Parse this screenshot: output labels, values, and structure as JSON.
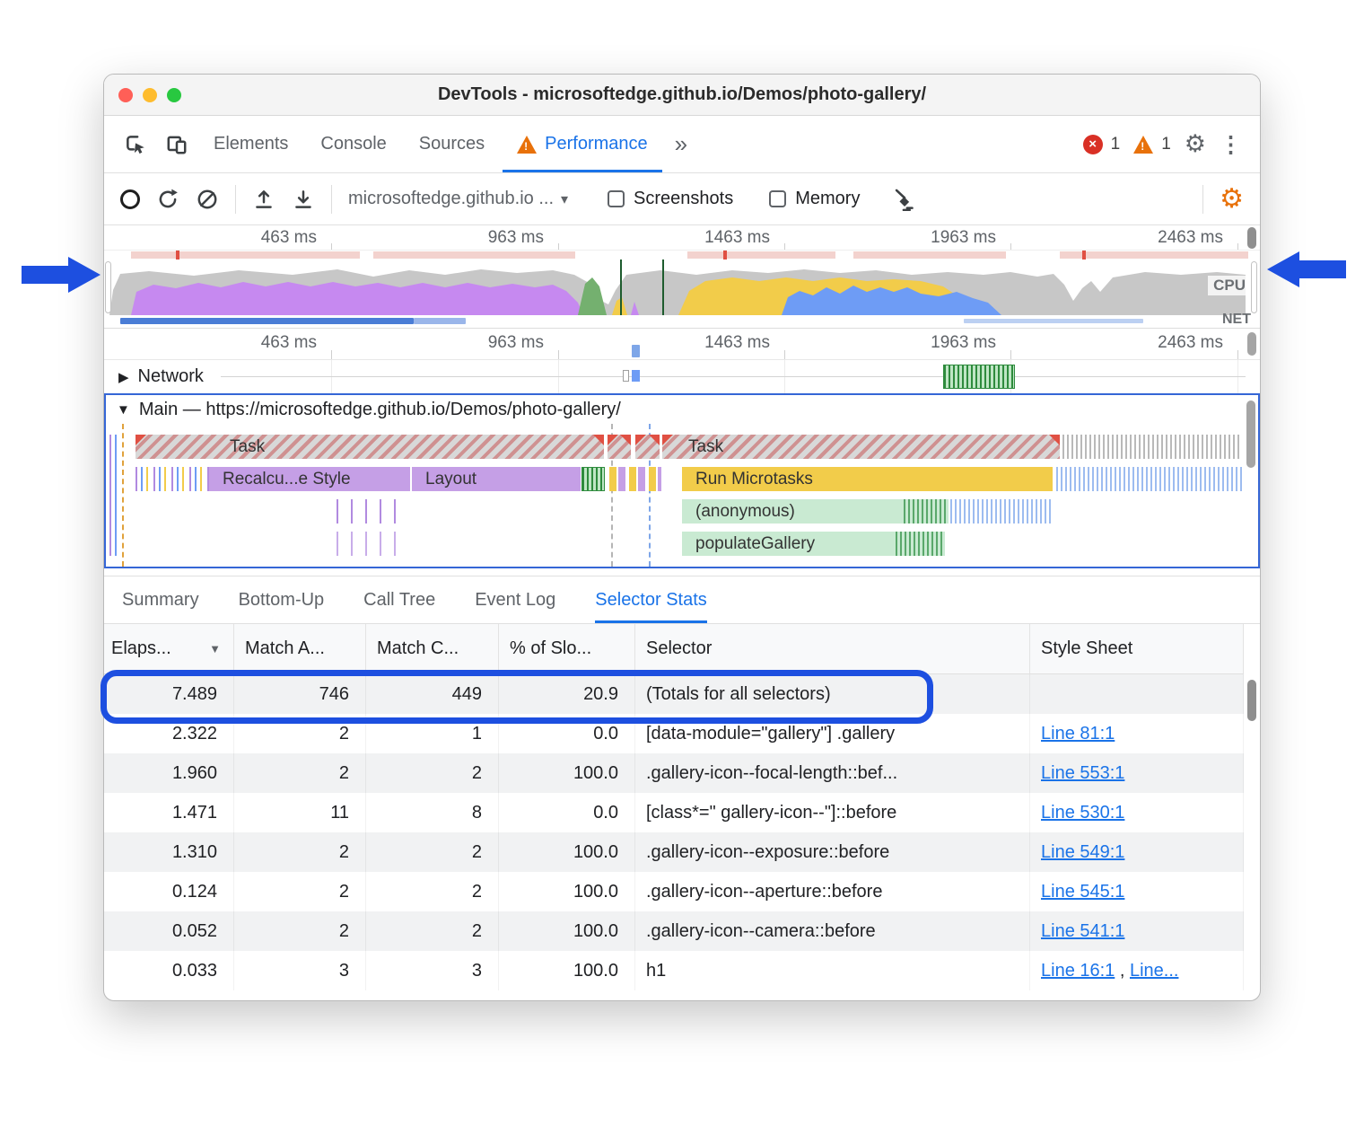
{
  "window": {
    "title": "DevTools - microsoftedge.github.io/Demos/photo-gallery/"
  },
  "icons": {
    "close": "×",
    "warning_mark": "!",
    "gear": "⚙",
    "kebab": "⋮",
    "more": "»",
    "caret": "▾",
    "tri_right": "▶",
    "tri_down": "▼",
    "sort": "▼"
  },
  "main_tabs": {
    "items": [
      "Elements",
      "Console",
      "Sources",
      "Performance"
    ],
    "error_count": "1",
    "warning_count": "1"
  },
  "toolbar": {
    "history_selector": "microsoftedge.github.io ...",
    "screenshots_label": "Screenshots",
    "memory_label": "Memory"
  },
  "overview": {
    "time_labels": [
      "463 ms",
      "963 ms",
      "1463 ms",
      "1963 ms",
      "2463 ms"
    ],
    "cpu_label": "CPU",
    "net_label": "NET"
  },
  "timeline": {
    "time_labels": [
      "463 ms",
      "963 ms",
      "1463 ms",
      "1963 ms",
      "2463 ms"
    ],
    "network_label": "Network",
    "main_label": "Main — https://microsoftedge.github.io/Demos/photo-gallery/",
    "flame": {
      "task_left": "Task",
      "task_right": "Task",
      "recalc_style": "Recalcu...e Style",
      "layout": "Layout",
      "run_microtasks": "Run Microtasks",
      "anonymous": "(anonymous)",
      "populate_gallery": "populateGallery"
    }
  },
  "bottom_tabs": {
    "items": [
      "Summary",
      "Bottom-Up",
      "Call Tree",
      "Event Log",
      "Selector Stats"
    ]
  },
  "stats_table": {
    "columns": [
      "Elaps...",
      "Match A...",
      "Match C...",
      "% of Slo...",
      "Selector",
      "Style Sheet"
    ],
    "rows": [
      {
        "elapsed": "7.489",
        "match_attempts": "746",
        "match_count": "449",
        "slow_pct": "20.9",
        "selector": "(Totals for all selectors)",
        "link1": "",
        "sep": "",
        "link2": ""
      },
      {
        "elapsed": "2.322",
        "match_attempts": "2",
        "match_count": "1",
        "slow_pct": "0.0",
        "selector": "[data-module=\"gallery\"] .gallery",
        "link1": "Line 81:1",
        "sep": "",
        "link2": ""
      },
      {
        "elapsed": "1.960",
        "match_attempts": "2",
        "match_count": "2",
        "slow_pct": "100.0",
        "selector": ".gallery-icon--focal-length::bef...",
        "link1": "Line 553:1",
        "sep": "",
        "link2": ""
      },
      {
        "elapsed": "1.471",
        "match_attempts": "11",
        "match_count": "8",
        "slow_pct": "0.0",
        "selector": "[class*=\" gallery-icon--\"]::before",
        "link1": "Line 530:1",
        "sep": "",
        "link2": ""
      },
      {
        "elapsed": "1.310",
        "match_attempts": "2",
        "match_count": "2",
        "slow_pct": "100.0",
        "selector": ".gallery-icon--exposure::before",
        "link1": "Line 549:1",
        "sep": "",
        "link2": ""
      },
      {
        "elapsed": "0.124",
        "match_attempts": "2",
        "match_count": "2",
        "slow_pct": "100.0",
        "selector": ".gallery-icon--aperture::before",
        "link1": "Line 545:1",
        "sep": "",
        "link2": ""
      },
      {
        "elapsed": "0.052",
        "match_attempts": "2",
        "match_count": "2",
        "slow_pct": "100.0",
        "selector": ".gallery-icon--camera::before",
        "link1": "Line 541:1",
        "sep": "",
        "link2": ""
      },
      {
        "elapsed": "0.033",
        "match_attempts": "3",
        "match_count": "3",
        "slow_pct": "100.0",
        "selector": "h1",
        "link1": "Line 16:1",
        "sep": " , ",
        "link2": "Line..."
      }
    ]
  },
  "colors": {
    "accent_blue": "#1a73e8",
    "annotation_blue": "#1d4fe0",
    "error_red": "#d93025",
    "warning_orange": "#e8710a",
    "cpu_rendering_purple": "#c689f0",
    "cpu_scripting_yellow": "#f2cc4a",
    "cpu_painting_green": "#74b06f",
    "cpu_loading_blue": "#6e9cf5",
    "cpu_other_gray": "#c7c7c7"
  }
}
